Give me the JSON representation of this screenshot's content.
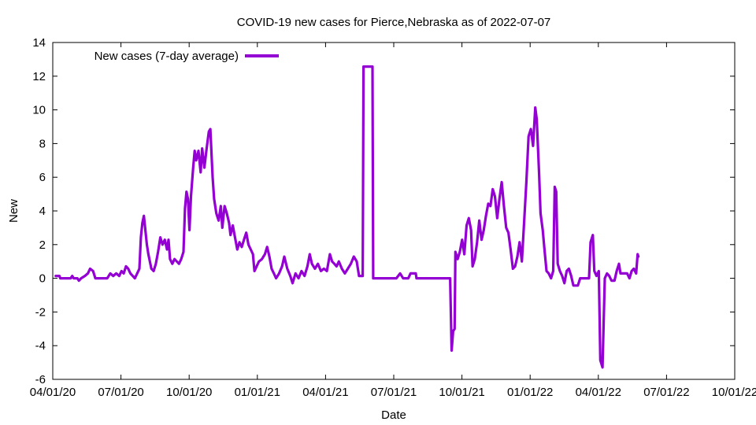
{
  "chart_data": {
    "type": "line",
    "title": "COVID-19 new cases for Pierce,Nebraska as of 2022-07-07",
    "xlabel": "Date",
    "ylabel": "New",
    "xlim": [
      "2020-04-01",
      "2022-10-01"
    ],
    "ylim": [
      -6,
      14
    ],
    "x_ticks": [
      "04/01/20",
      "07/01/20",
      "10/01/20",
      "01/01/21",
      "04/01/21",
      "07/01/21",
      "10/01/21",
      "01/01/22",
      "04/01/22",
      "07/01/22",
      "10/01/22"
    ],
    "y_ticks": [
      -6,
      -4,
      -2,
      0,
      2,
      4,
      6,
      8,
      10,
      12,
      14
    ],
    "grid": false,
    "legend_position": "top-left",
    "series": [
      {
        "name": "New cases (7-day average)",
        "color": "#9400d3",
        "points": [
          [
            "2020-04-05",
            0.14
          ],
          [
            "2020-04-10",
            0.14
          ],
          [
            "2020-04-11",
            0.0
          ],
          [
            "2020-04-25",
            0.0
          ],
          [
            "2020-04-27",
            0.14
          ],
          [
            "2020-04-29",
            0.0
          ],
          [
            "2020-05-04",
            0.0
          ],
          [
            "2020-05-06",
            -0.14
          ],
          [
            "2020-05-09",
            0.0
          ],
          [
            "2020-05-14",
            0.14
          ],
          [
            "2020-05-18",
            0.29
          ],
          [
            "2020-05-21",
            0.57
          ],
          [
            "2020-05-25",
            0.43
          ],
          [
            "2020-05-28",
            0.0
          ],
          [
            "2020-06-06",
            0.0
          ],
          [
            "2020-06-13",
            0.0
          ],
          [
            "2020-06-17",
            0.29
          ],
          [
            "2020-06-21",
            0.14
          ],
          [
            "2020-06-25",
            0.29
          ],
          [
            "2020-06-29",
            0.14
          ],
          [
            "2020-07-02",
            0.43
          ],
          [
            "2020-07-05",
            0.29
          ],
          [
            "2020-07-08",
            0.71
          ],
          [
            "2020-07-11",
            0.57
          ],
          [
            "2020-07-14",
            0.29
          ],
          [
            "2020-07-17",
            0.14
          ],
          [
            "2020-07-20",
            0.0
          ],
          [
            "2020-07-23",
            0.29
          ],
          [
            "2020-07-26",
            0.57
          ],
          [
            "2020-07-28",
            2.43
          ],
          [
            "2020-07-30",
            3.29
          ],
          [
            "2020-08-01",
            3.71
          ],
          [
            "2020-08-03",
            2.86
          ],
          [
            "2020-08-05",
            2.0
          ],
          [
            "2020-08-07",
            1.43
          ],
          [
            "2020-08-09",
            1.0
          ],
          [
            "2020-08-11",
            0.57
          ],
          [
            "2020-08-14",
            0.43
          ],
          [
            "2020-08-17",
            0.86
          ],
          [
            "2020-08-20",
            1.57
          ],
          [
            "2020-08-23",
            2.43
          ],
          [
            "2020-08-26",
            2.0
          ],
          [
            "2020-08-29",
            2.29
          ],
          [
            "2020-09-01",
            1.71
          ],
          [
            "2020-09-03",
            2.29
          ],
          [
            "2020-09-05",
            1.14
          ],
          [
            "2020-09-08",
            0.86
          ],
          [
            "2020-09-11",
            1.14
          ],
          [
            "2020-09-14",
            1.0
          ],
          [
            "2020-09-17",
            0.86
          ],
          [
            "2020-09-20",
            1.14
          ],
          [
            "2020-09-23",
            1.57
          ],
          [
            "2020-09-25",
            4.14
          ],
          [
            "2020-09-27",
            5.14
          ],
          [
            "2020-09-29",
            4.71
          ],
          [
            "2020-10-01",
            2.86
          ],
          [
            "2020-10-03",
            4.86
          ],
          [
            "2020-10-06",
            6.57
          ],
          [
            "2020-10-08",
            7.57
          ],
          [
            "2020-10-10",
            7.0
          ],
          [
            "2020-10-13",
            7.57
          ],
          [
            "2020-10-16",
            6.29
          ],
          [
            "2020-10-18",
            7.71
          ],
          [
            "2020-10-21",
            6.57
          ],
          [
            "2020-10-24",
            7.71
          ],
          [
            "2020-10-27",
            8.71
          ],
          [
            "2020-10-29",
            8.86
          ],
          [
            "2020-11-01",
            6.0
          ],
          [
            "2020-11-03",
            4.71
          ],
          [
            "2020-11-06",
            3.86
          ],
          [
            "2020-11-09",
            3.43
          ],
          [
            "2020-11-12",
            4.29
          ],
          [
            "2020-11-14",
            3.0
          ],
          [
            "2020-11-17",
            4.29
          ],
          [
            "2020-11-20",
            3.86
          ],
          [
            "2020-11-23",
            3.29
          ],
          [
            "2020-11-25",
            2.57
          ],
          [
            "2020-11-28",
            3.14
          ],
          [
            "2020-12-01",
            2.43
          ],
          [
            "2020-12-04",
            1.71
          ],
          [
            "2020-12-07",
            2.14
          ],
          [
            "2020-12-10",
            1.86
          ],
          [
            "2020-12-13",
            2.29
          ],
          [
            "2020-12-16",
            2.71
          ],
          [
            "2020-12-19",
            2.0
          ],
          [
            "2020-12-22",
            1.71
          ],
          [
            "2020-12-25",
            1.43
          ],
          [
            "2020-12-27",
            0.43
          ],
          [
            "2020-12-30",
            0.71
          ],
          [
            "2021-01-02",
            1.0
          ],
          [
            "2021-01-06",
            1.14
          ],
          [
            "2021-01-10",
            1.43
          ],
          [
            "2021-01-13",
            1.86
          ],
          [
            "2021-01-16",
            1.29
          ],
          [
            "2021-01-19",
            0.57
          ],
          [
            "2021-01-22",
            0.29
          ],
          [
            "2021-01-25",
            0.0
          ],
          [
            "2021-01-29",
            0.29
          ],
          [
            "2021-02-02",
            0.71
          ],
          [
            "2021-02-05",
            1.29
          ],
          [
            "2021-02-09",
            0.57
          ],
          [
            "2021-02-13",
            0.14
          ],
          [
            "2021-02-16",
            -0.29
          ],
          [
            "2021-02-20",
            0.29
          ],
          [
            "2021-02-24",
            0.0
          ],
          [
            "2021-02-28",
            0.43
          ],
          [
            "2021-03-04",
            0.14
          ],
          [
            "2021-03-08",
            0.71
          ],
          [
            "2021-03-11",
            1.43
          ],
          [
            "2021-03-14",
            0.86
          ],
          [
            "2021-03-18",
            0.57
          ],
          [
            "2021-03-22",
            0.86
          ],
          [
            "2021-03-26",
            0.43
          ],
          [
            "2021-03-30",
            0.57
          ],
          [
            "2021-04-03",
            0.43
          ],
          [
            "2021-04-07",
            1.43
          ],
          [
            "2021-04-10",
            1.0
          ],
          [
            "2021-04-13",
            0.86
          ],
          [
            "2021-04-16",
            0.71
          ],
          [
            "2021-04-19",
            1.0
          ],
          [
            "2021-04-23",
            0.57
          ],
          [
            "2021-04-27",
            0.29
          ],
          [
            "2021-05-01",
            0.57
          ],
          [
            "2021-05-05",
            0.86
          ],
          [
            "2021-05-09",
            1.29
          ],
          [
            "2021-05-13",
            1.0
          ],
          [
            "2021-05-16",
            0.14
          ],
          [
            "2021-05-21",
            0.14
          ],
          [
            "2021-05-22",
            12.57
          ],
          [
            "2021-06-03",
            12.57
          ],
          [
            "2021-06-04",
            0.0
          ],
          [
            "2021-06-20",
            0.0
          ],
          [
            "2021-07-05",
            0.0
          ],
          [
            "2021-07-10",
            0.29
          ],
          [
            "2021-07-14",
            0.0
          ],
          [
            "2021-07-21",
            0.0
          ],
          [
            "2021-07-24",
            0.29
          ],
          [
            "2021-07-31",
            0.29
          ],
          [
            "2021-08-01",
            0.0
          ],
          [
            "2021-08-20",
            0.0
          ],
          [
            "2021-09-10",
            0.0
          ],
          [
            "2021-09-15",
            0.0
          ],
          [
            "2021-09-17",
            -4.29
          ],
          [
            "2021-09-19",
            -3.14
          ],
          [
            "2021-09-21",
            -3.0
          ],
          [
            "2021-09-22",
            1.57
          ],
          [
            "2021-09-25",
            1.14
          ],
          [
            "2021-09-28",
            1.57
          ],
          [
            "2021-10-01",
            2.29
          ],
          [
            "2021-10-04",
            1.43
          ],
          [
            "2021-10-07",
            3.14
          ],
          [
            "2021-10-10",
            3.57
          ],
          [
            "2021-10-13",
            2.86
          ],
          [
            "2021-10-15",
            0.71
          ],
          [
            "2021-10-18",
            1.14
          ],
          [
            "2021-10-21",
            2.14
          ],
          [
            "2021-10-24",
            3.43
          ],
          [
            "2021-10-27",
            2.29
          ],
          [
            "2021-10-30",
            2.86
          ],
          [
            "2021-11-02",
            3.71
          ],
          [
            "2021-11-05",
            4.43
          ],
          [
            "2021-11-08",
            4.29
          ],
          [
            "2021-11-11",
            5.29
          ],
          [
            "2021-11-14",
            4.86
          ],
          [
            "2021-11-17",
            3.57
          ],
          [
            "2021-11-20",
            4.71
          ],
          [
            "2021-11-23",
            5.71
          ],
          [
            "2021-11-26",
            4.29
          ],
          [
            "2021-11-29",
            3.0
          ],
          [
            "2021-12-02",
            2.71
          ],
          [
            "2021-12-05",
            1.71
          ],
          [
            "2021-12-08",
            0.57
          ],
          [
            "2021-12-11",
            0.71
          ],
          [
            "2021-12-14",
            1.29
          ],
          [
            "2021-12-17",
            2.14
          ],
          [
            "2021-12-20",
            1.0
          ],
          [
            "2021-12-23",
            3.29
          ],
          [
            "2021-12-26",
            5.71
          ],
          [
            "2021-12-29",
            8.43
          ],
          [
            "2022-01-01",
            8.86
          ],
          [
            "2022-01-04",
            7.86
          ],
          [
            "2022-01-07",
            10.14
          ],
          [
            "2022-01-09",
            9.43
          ],
          [
            "2022-01-12",
            6.29
          ],
          [
            "2022-01-14",
            3.86
          ],
          [
            "2022-01-17",
            2.86
          ],
          [
            "2022-01-19",
            1.86
          ],
          [
            "2022-01-22",
            0.43
          ],
          [
            "2022-01-25",
            0.29
          ],
          [
            "2022-01-28",
            0.0
          ],
          [
            "2022-01-31",
            0.43
          ],
          [
            "2022-02-02",
            5.43
          ],
          [
            "2022-02-04",
            5.14
          ],
          [
            "2022-02-06",
            0.86
          ],
          [
            "2022-02-09",
            0.43
          ],
          [
            "2022-02-12",
            0.14
          ],
          [
            "2022-02-15",
            -0.29
          ],
          [
            "2022-02-18",
            0.43
          ],
          [
            "2022-02-21",
            0.57
          ],
          [
            "2022-02-24",
            0.14
          ],
          [
            "2022-02-27",
            -0.43
          ],
          [
            "2022-03-05",
            -0.43
          ],
          [
            "2022-03-08",
            0.0
          ],
          [
            "2022-03-20",
            0.0
          ],
          [
            "2022-03-22",
            2.14
          ],
          [
            "2022-03-25",
            2.57
          ],
          [
            "2022-03-27",
            0.43
          ],
          [
            "2022-03-30",
            0.14
          ],
          [
            "2022-04-02",
            0.43
          ],
          [
            "2022-04-04",
            -4.86
          ],
          [
            "2022-04-07",
            -5.29
          ],
          [
            "2022-04-10",
            0.0
          ],
          [
            "2022-04-13",
            0.29
          ],
          [
            "2022-04-16",
            0.14
          ],
          [
            "2022-04-19",
            -0.14
          ],
          [
            "2022-04-23",
            -0.14
          ],
          [
            "2022-04-26",
            0.43
          ],
          [
            "2022-04-29",
            0.86
          ],
          [
            "2022-05-01",
            0.29
          ],
          [
            "2022-05-06",
            0.29
          ],
          [
            "2022-05-10",
            0.29
          ],
          [
            "2022-05-13",
            0.0
          ],
          [
            "2022-05-16",
            0.43
          ],
          [
            "2022-05-19",
            0.57
          ],
          [
            "2022-05-22",
            0.29
          ],
          [
            "2022-05-24",
            1.43
          ],
          [
            "2022-05-25",
            1.29
          ]
        ]
      }
    ]
  }
}
